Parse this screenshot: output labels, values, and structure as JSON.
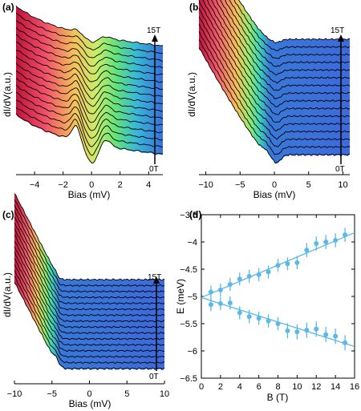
{
  "chart_data": [
    {
      "panel": "(a)",
      "type": "line",
      "xlabel": "Bias (mV)",
      "ylabel": "dI/dV(a.u.)",
      "xlim": [
        -5.3,
        5.0
      ],
      "xticks": [
        -4,
        -2,
        0,
        2,
        4
      ],
      "field_top": "15T",
      "field_bottom": "0T",
      "n_curves": 16,
      "colormap": "rainbow (red at negative bias, blue at positive bias)"
    },
    {
      "panel": "(b)",
      "type": "line",
      "xlabel": "Bias (mV)",
      "ylabel": "dI/dV(a.u.)",
      "xlim": [
        -11,
        11
      ],
      "xticks": [
        -10,
        -5,
        0,
        5,
        10
      ],
      "field_top": "15T",
      "field_bottom": "0T",
      "n_curves": 16,
      "colormap": "rainbow"
    },
    {
      "panel": "(c)",
      "type": "line",
      "xlabel": "Bias (mV)",
      "ylabel": "dI/dV(a.u.)",
      "xlim": [
        -10,
        10
      ],
      "xticks": [
        -10,
        -5,
        0,
        5,
        10
      ],
      "field_top": "15T",
      "field_bottom": "0T",
      "n_curves": 16,
      "colormap": "rainbow"
    },
    {
      "panel": "(d)",
      "type": "scatter",
      "xlabel": "B (T)",
      "ylabel": "E (meV)",
      "xlim": [
        0,
        16
      ],
      "ylim": [
        -6.5,
        -3.5
      ],
      "xticks": [
        0,
        2,
        4,
        6,
        8,
        10,
        12,
        14,
        16
      ],
      "yticks": [
        -3.5,
        -4,
        -4.5,
        -5,
        -5.5,
        -6,
        -6.5
      ],
      "color": "#5bb8e8",
      "series": [
        {
          "x": [
            1,
            2,
            3,
            4,
            5,
            6,
            7,
            8,
            9,
            10,
            11,
            12,
            13,
            14,
            15
          ],
          "y": [
            -4.92,
            -4.88,
            -4.78,
            -4.68,
            -4.63,
            -4.6,
            -4.55,
            -4.43,
            -4.4,
            -4.38,
            -4.15,
            -4.03,
            -4.0,
            -3.97,
            -3.87
          ],
          "err": [
            0.12,
            0.12,
            0.12,
            0.12,
            0.12,
            0.12,
            0.12,
            0.12,
            0.12,
            0.12,
            0.13,
            0.13,
            0.13,
            0.13,
            0.13
          ],
          "fit": [
            [
              0,
              -5.02
            ],
            [
              16,
              -3.83
            ]
          ]
        },
        {
          "x": [
            1,
            2,
            3,
            4,
            5,
            6,
            7,
            8,
            9,
            10,
            11,
            12,
            13,
            14,
            15
          ],
          "y": [
            -5.15,
            -5.13,
            -5.12,
            -5.3,
            -5.37,
            -5.4,
            -5.45,
            -5.5,
            -5.63,
            -5.65,
            -5.62,
            -5.6,
            -5.7,
            -5.73,
            -5.85
          ],
          "err": [
            0.12,
            0.12,
            0.12,
            0.12,
            0.12,
            0.12,
            0.12,
            0.12,
            0.14,
            0.14,
            0.14,
            0.14,
            0.14,
            0.14,
            0.14
          ],
          "fit": [
            [
              0,
              -5.02
            ],
            [
              16,
              -5.92
            ]
          ]
        }
      ]
    }
  ]
}
